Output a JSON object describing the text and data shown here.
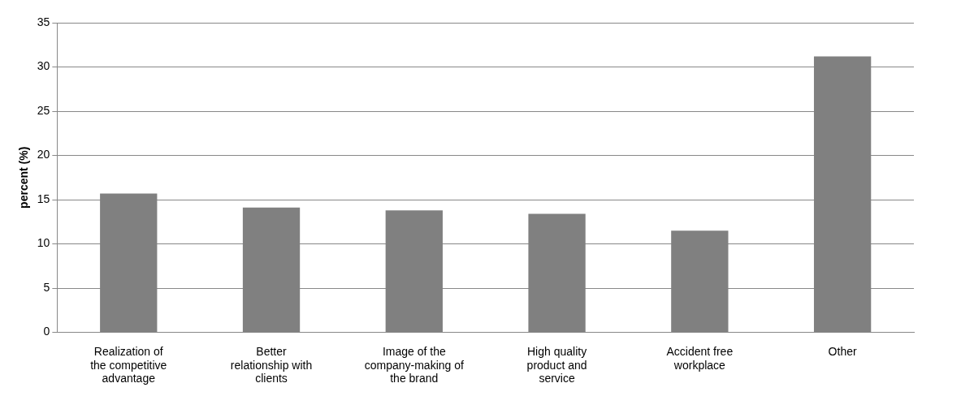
{
  "chart_data": {
    "type": "bar",
    "ylabel": "percent (%)",
    "categories": [
      "Realization of the competitive advantage",
      "Better relationship with clients",
      "Image of the company-making of the brand",
      "High quality product and service",
      "Accident free workplace",
      "Other"
    ],
    "values": [
      15.7,
      14.1,
      13.8,
      13.4,
      11.5,
      31.2
    ],
    "color": "#808080",
    "ylim": [
      0,
      35
    ],
    "yticks": [
      0,
      5,
      10,
      15,
      20,
      25,
      30,
      35
    ],
    "grid": "y",
    "legend": false
  }
}
